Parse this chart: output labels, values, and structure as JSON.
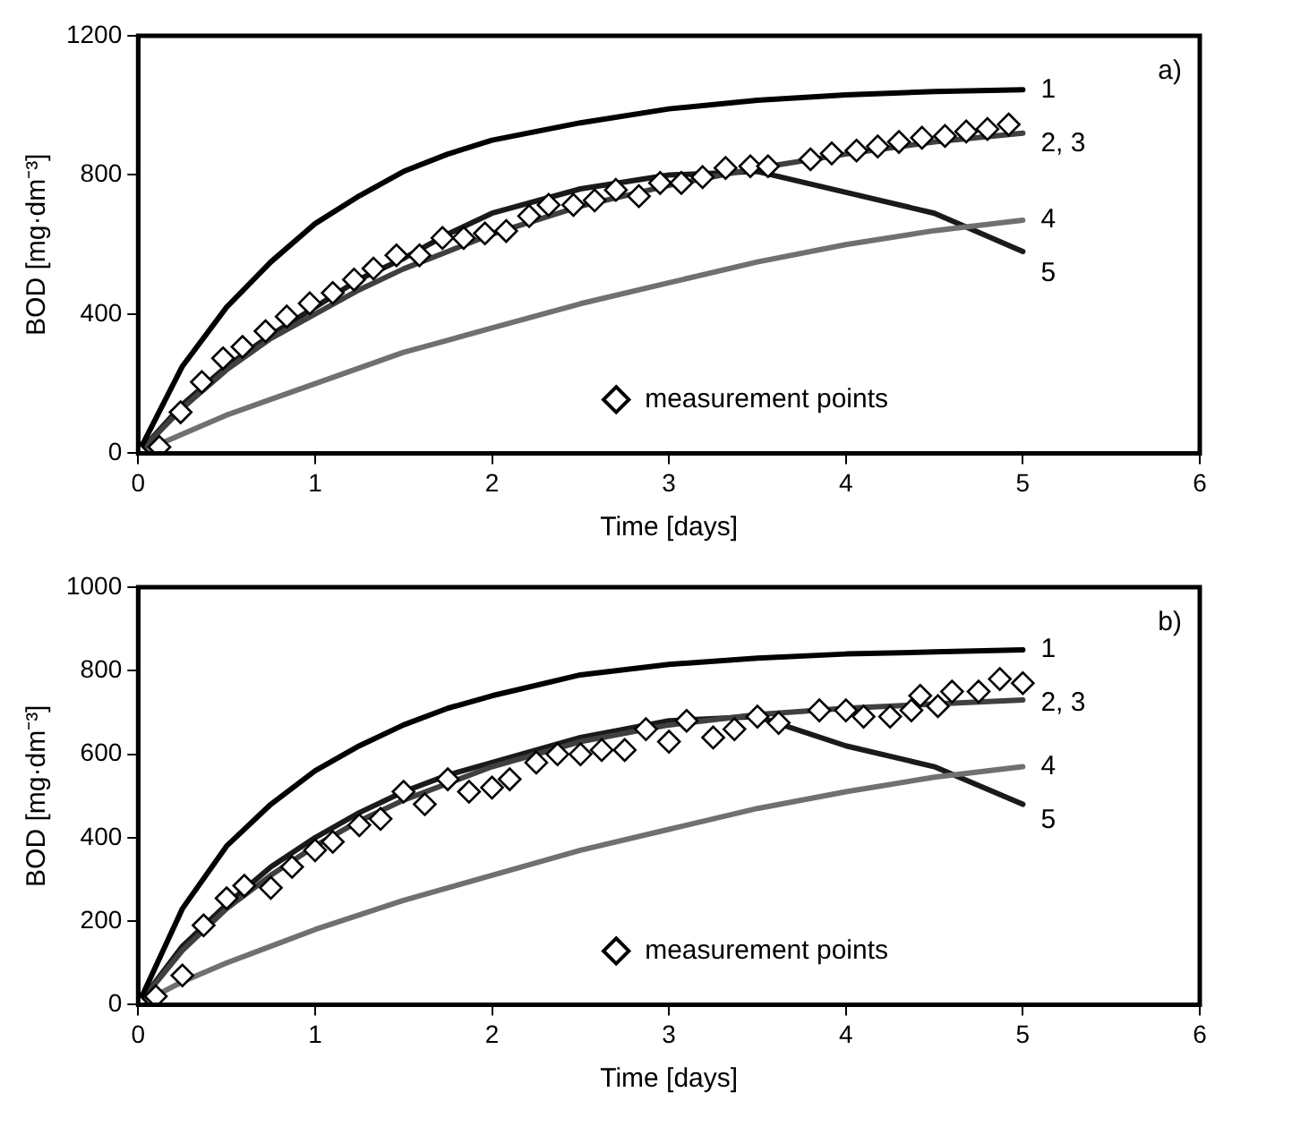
{
  "chart_data": [
    {
      "type": "line",
      "xlabel": "Time [days]",
      "ylabel": "BOD [mg·dm⁻³]",
      "annotations": [
        "a)"
      ],
      "xlim": [
        0,
        6
      ],
      "xticks": [
        0,
        1,
        2,
        3,
        4,
        5,
        6
      ],
      "ylim": [
        0,
        1200
      ],
      "yticks": [
        0,
        400,
        800,
        1200
      ],
      "grid": false,
      "legend": "bottom right",
      "marker": "none",
      "line_style": "solid",
      "x": [
        0,
        0.25,
        0.5,
        0.75,
        1,
        1.25,
        1.5,
        1.75,
        2,
        2.5,
        3,
        3.5,
        4,
        4.5,
        5
      ],
      "series": [
        {
          "name": "1",
          "color": "#000000",
          "values": [
            0,
            250,
            420,
            550,
            660,
            740,
            810,
            860,
            900,
            950,
            990,
            1015,
            1030,
            1040,
            1045
          ]
        },
        {
          "name": "2, 3",
          "color": "#404040",
          "values": [
            0,
            130,
            240,
            330,
            400,
            470,
            530,
            580,
            630,
            710,
            770,
            820,
            860,
            895,
            920
          ]
        },
        {
          "name": "4",
          "color": "#707070",
          "values": [
            0,
            55,
            110,
            155,
            200,
            245,
            290,
            325,
            360,
            430,
            490,
            550,
            600,
            640,
            670
          ]
        },
        {
          "name": "5",
          "color": "#1a1a1a",
          "values": [
            0,
            140,
            250,
            340,
            420,
            500,
            560,
            630,
            690,
            760,
            800,
            810,
            750,
            690,
            580
          ]
        },
        {
          "name": "measurement points",
          "type": "scatter",
          "marker": "diamond",
          "color": "#000000",
          "x": [
            0,
            0.12,
            0.24,
            0.36,
            0.48,
            0.59,
            0.72,
            0.84,
            0.97,
            1.1,
            1.22,
            1.33,
            1.46,
            1.59,
            1.72,
            1.84,
            1.96,
            2.08,
            2.21,
            2.32,
            2.46,
            2.58,
            2.7,
            2.83,
            2.95,
            3.07,
            3.19,
            3.32,
            3.46,
            3.56,
            3.8,
            3.92,
            4.06,
            4.18,
            4.3,
            4.43,
            4.56,
            4.68,
            4.8,
            4.92
          ],
          "values": [
            0,
            18,
            118,
            205,
            273,
            306,
            351,
            393,
            431,
            461,
            499,
            531,
            569,
            569,
            619,
            619,
            632,
            639,
            682,
            714,
            714,
            727,
            757,
            739,
            777,
            777,
            794,
            820,
            825,
            825,
            845,
            862,
            870,
            882,
            895,
            907,
            912,
            925,
            932,
            945
          ]
        }
      ]
    },
    {
      "type": "line",
      "xlabel": "Time [days]",
      "ylabel": "BOD [mg·dm⁻³]",
      "annotations": [
        "b)"
      ],
      "xlim": [
        0,
        6
      ],
      "xticks": [
        0,
        1,
        2,
        3,
        4,
        5,
        6
      ],
      "ylim": [
        0,
        1000
      ],
      "yticks": [
        0,
        200,
        400,
        600,
        800,
        1000
      ],
      "grid": false,
      "legend": "bottom right",
      "marker": "none",
      "line_style": "solid",
      "x": [
        0,
        0.25,
        0.5,
        0.75,
        1,
        1.25,
        1.5,
        1.75,
        2,
        2.5,
        3,
        3.5,
        4,
        4.5,
        5
      ],
      "series": [
        {
          "name": "1",
          "color": "#000000",
          "values": [
            0,
            230,
            380,
            480,
            560,
            620,
            670,
            710,
            740,
            790,
            815,
            830,
            840,
            845,
            850
          ]
        },
        {
          "name": "2, 3",
          "color": "#404040",
          "values": [
            0,
            130,
            230,
            310,
            380,
            440,
            490,
            530,
            570,
            630,
            670,
            695,
            710,
            720,
            730
          ]
        },
        {
          "name": "4",
          "color": "#707070",
          "values": [
            0,
            55,
            100,
            140,
            180,
            215,
            250,
            280,
            310,
            370,
            420,
            470,
            510,
            545,
            570
          ]
        },
        {
          "name": "5",
          "color": "#1a1a1a",
          "values": [
            0,
            140,
            240,
            330,
            400,
            460,
            510,
            550,
            580,
            640,
            680,
            690,
            620,
            570,
            480
          ]
        },
        {
          "name": "measurement points",
          "type": "scatter",
          "marker": "diamond",
          "color": "#000000",
          "x": [
            0,
            0.1,
            0.25,
            0.37,
            0.5,
            0.6,
            0.75,
            0.87,
            1,
            1.1,
            1.25,
            1.37,
            1.5,
            1.62,
            1.75,
            1.87,
            2,
            2.1,
            2.25,
            2.37,
            2.5,
            2.62,
            2.75,
            2.87,
            3,
            3.1,
            3.25,
            3.37,
            3.5,
            3.62,
            3.85,
            4,
            4.1,
            4.25,
            4.37,
            4.42,
            4.52,
            4.6,
            4.75,
            4.87,
            5
          ],
          "values": [
            0,
            20,
            70,
            190,
            255,
            285,
            280,
            330,
            370,
            390,
            430,
            445,
            510,
            480,
            540,
            510,
            520,
            540,
            580,
            600,
            600,
            610,
            610,
            660,
            630,
            680,
            640,
            660,
            690,
            675,
            705,
            705,
            690,
            690,
            705,
            740,
            715,
            750,
            750,
            780,
            770
          ]
        }
      ]
    }
  ]
}
